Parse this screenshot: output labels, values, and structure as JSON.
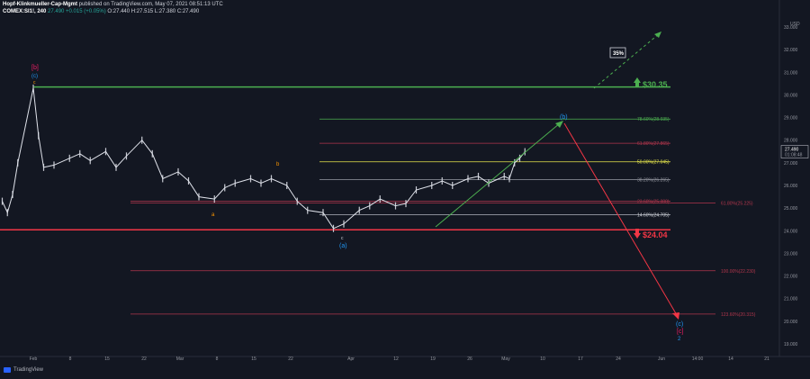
{
  "header": {
    "publisher": "Hopf-Klinkmueller-Cap-Mgmt",
    "published_text": "published on TradingView.com, May 07, 2021 08:51:13 UTC",
    "symbol": "COMEX:SI1!, 240",
    "change_text": "27.490 +0.015 (+0.05%)",
    "ohlc_text": "O:27.440 H:27.515 L:27.380 C:27.490"
  },
  "footer": {
    "brand": "TradingView"
  },
  "chart_data": {
    "type": "line",
    "y_currency_label": "USD",
    "ylim": [
      18.6,
      33.4
    ],
    "y_ticks": [
      "33.000",
      "32.000",
      "31.000",
      "30.000",
      "29.000",
      "28.000",
      "27.000",
      "26.000",
      "25.000",
      "24.000",
      "23.000",
      "22.000",
      "21.000",
      "20.000",
      "19.000"
    ],
    "x_ticks": [
      "Feb",
      "8",
      "15",
      "22",
      "Mar",
      "8",
      "15",
      "22",
      "Apr",
      "12",
      "19",
      "26",
      "May",
      "10",
      "17",
      "24",
      "Jun",
      "14:00",
      "14",
      "21"
    ],
    "price_badge": "27.490",
    "price_badge_time": "01:08:48",
    "series": [
      {
        "x": [
          "Jan 26",
          "Jan 27",
          "Jan 28",
          "Jan 29",
          "Feb 1",
          "Feb 2",
          "Feb 3",
          "Feb 5",
          "Feb 8",
          "Feb 10",
          "Feb 12",
          "Feb 15",
          "Feb 17",
          "Feb 19",
          "Feb 22",
          "Feb 24",
          "Feb 26",
          "Mar 1",
          "Mar 3",
          "Mar 5",
          "Mar 8",
          "Mar 10",
          "Mar 12",
          "Mar 15",
          "Mar 17",
          "Mar 19",
          "Mar 22",
          "Mar 24",
          "Mar 26",
          "Mar 29",
          "Mar 31",
          "Apr 2",
          "Apr 5",
          "Apr 7",
          "Apr 9",
          "Apr 12",
          "Apr 14",
          "Apr 16",
          "Apr 19",
          "Apr 21",
          "Apr 23",
          "Apr 26",
          "Apr 28",
          "Apr 30",
          "May 3",
          "May 4",
          "May 5",
          "May 6",
          "May 7"
        ],
        "values": [
          25.3,
          24.8,
          25.6,
          27.0,
          30.3,
          28.2,
          26.8,
          26.9,
          27.2,
          27.4,
          27.1,
          27.5,
          26.8,
          27.3,
          28.0,
          27.4,
          26.3,
          26.6,
          26.2,
          25.5,
          25.4,
          25.9,
          26.1,
          26.3,
          26.1,
          26.3,
          26.0,
          25.3,
          24.9,
          24.8,
          24.1,
          24.3,
          24.9,
          25.1,
          25.4,
          25.1,
          25.2,
          25.8,
          26.0,
          26.2,
          26.0,
          26.3,
          26.4,
          26.1,
          26.4,
          26.3,
          27.0,
          27.2,
          27.49
        ]
      }
    ],
    "key_levels": [
      {
        "label": "$30.35",
        "value": 30.35,
        "color": "#4caf50"
      },
      {
        "label": "$24.04",
        "value": 24.04,
        "color": "#f23645"
      }
    ],
    "fib_levels": [
      {
        "label": "78.60%(28.935)",
        "value": 28.935,
        "color": "#4caf50"
      },
      {
        "label": "61.80%(27.865)",
        "value": 27.865,
        "color": "#b2364c"
      },
      {
        "label": "50.00%(27.045)",
        "value": 27.045,
        "color": "#e6e64c"
      },
      {
        "label": "38.20%(26.265)",
        "value": 26.265,
        "color": "#9598a1"
      },
      {
        "label": "23.60%(25.300)",
        "value": 25.3,
        "color": "#b2364c"
      },
      {
        "label": "14.60%(24.705)",
        "value": 24.705,
        "color": "#d1d4dc"
      },
      {
        "label": "61.80%(25.225)",
        "value": 25.225,
        "color": "#b2364c"
      },
      {
        "label": "100.00%(22.230)",
        "value": 22.23,
        "color": "#b2364c"
      },
      {
        "label": "123.60%(20.315)",
        "value": 20.315,
        "color": "#b2364c"
      }
    ],
    "annotations": {
      "b_bracket": "[b]",
      "c_top": "(c)",
      "c_top_small": "c",
      "a_small": "a",
      "b_small": "b",
      "c_bottom_small": "c",
      "a_paren": "(a)",
      "b_paren": "(b)",
      "c_paren": "(c)",
      "c_bracket": "[c]",
      "two": "2",
      "pct": "35%"
    }
  }
}
